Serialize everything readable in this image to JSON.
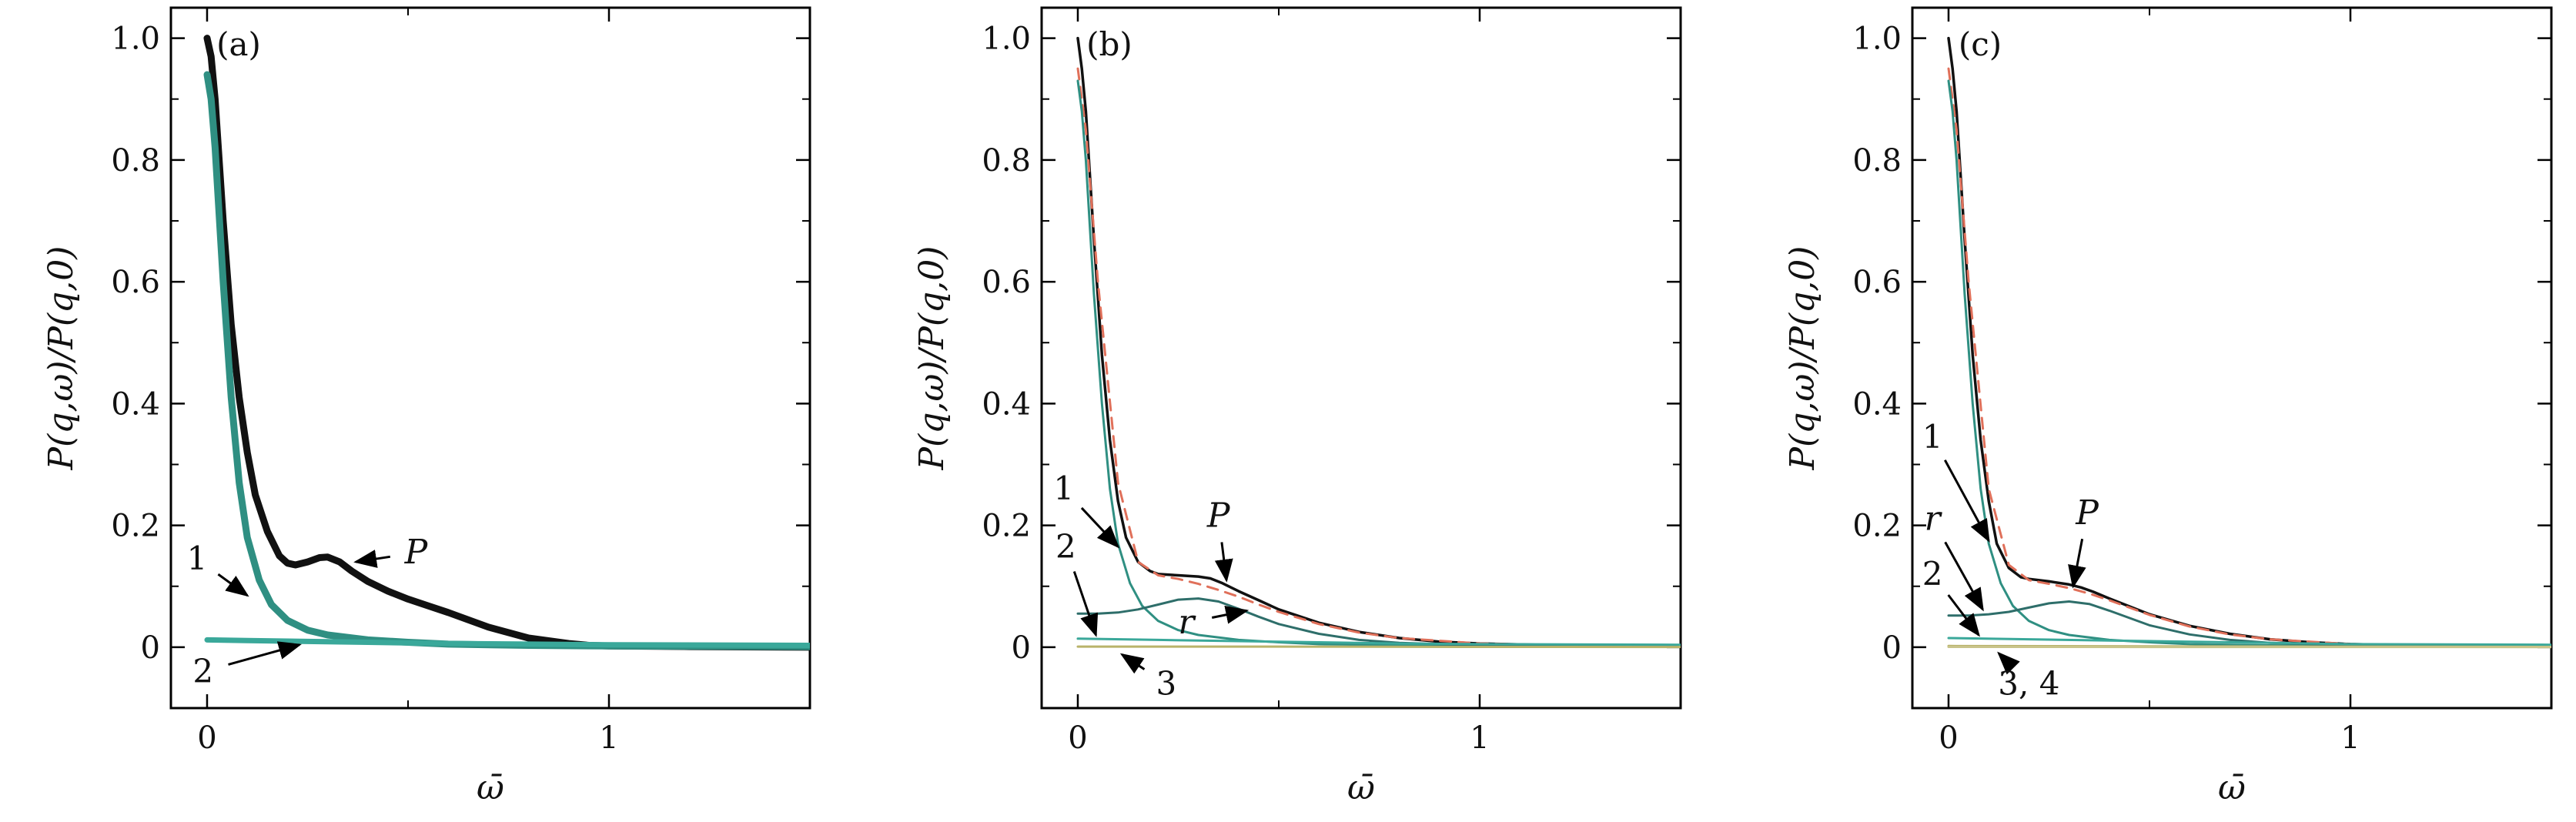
{
  "figure": {
    "colors": {
      "P": "#111111",
      "c1": "#2f8f82",
      "c2": "#3aa89a",
      "r": "#2e6e6a",
      "c3": "#b9b36a",
      "c4": "#c9c48a",
      "fit": "#e0705a"
    }
  },
  "chart_data": [
    {
      "type": "line",
      "panel": "(a)",
      "xlabel": "ω̄",
      "ylabel": "P(q,ω)/P(q,0)",
      "xlim": [
        -0.09,
        1.5
      ],
      "ylim": [
        -0.1,
        1.05
      ],
      "xticks": [
        0,
        1
      ],
      "xtick_labels": [
        "0",
        "1"
      ],
      "yticks": [
        0,
        0.2,
        0.4,
        0.6,
        0.8,
        1.0
      ],
      "ytick_labels": [
        "0",
        "0.2",
        "0.4",
        "0.6",
        "0.8",
        "1.0"
      ],
      "series": [
        {
          "key": "P",
          "color": "#111111",
          "width": 9,
          "dash": "",
          "x": [
            0,
            0.01,
            0.02,
            0.04,
            0.06,
            0.08,
            0.1,
            0.12,
            0.15,
            0.18,
            0.2,
            0.22,
            0.25,
            0.28,
            0.3,
            0.33,
            0.36,
            0.4,
            0.45,
            0.5,
            0.55,
            0.6,
            0.7,
            0.8,
            0.9,
            0.95,
            1.0,
            1.2,
            1.5
          ],
          "y": [
            1.0,
            0.97,
            0.9,
            0.7,
            0.53,
            0.41,
            0.32,
            0.25,
            0.19,
            0.15,
            0.138,
            0.135,
            0.14,
            0.147,
            0.148,
            0.14,
            0.125,
            0.108,
            0.092,
            0.079,
            0.068,
            0.057,
            0.033,
            0.015,
            0.006,
            0.003,
            0.002,
            0.001,
            0.0
          ]
        },
        {
          "key": "c1",
          "color": "#2f8f82",
          "width": 9,
          "dash": "",
          "x": [
            0,
            0.01,
            0.02,
            0.04,
            0.06,
            0.08,
            0.1,
            0.13,
            0.16,
            0.2,
            0.25,
            0.3,
            0.4,
            0.5,
            0.6,
            0.8,
            1.0,
            1.5
          ],
          "y": [
            0.94,
            0.9,
            0.82,
            0.6,
            0.41,
            0.27,
            0.18,
            0.11,
            0.07,
            0.044,
            0.028,
            0.02,
            0.012,
            0.008,
            0.005,
            0.003,
            0.002,
            0.001
          ]
        },
        {
          "key": "c2",
          "color": "#3aa89a",
          "width": 7,
          "dash": "",
          "x": [
            0,
            0.1,
            0.2,
            0.3,
            0.4,
            0.6,
            0.8,
            1.0,
            1.5
          ],
          "y": [
            0.012,
            0.011,
            0.01,
            0.009,
            0.008,
            0.006,
            0.005,
            0.004,
            0.003
          ]
        }
      ],
      "annotations": [
        {
          "text": "P",
          "style": "italic",
          "tx": 0.52,
          "ty": 0.155,
          "ax": 0.37,
          "ay": 0.14
        },
        {
          "text": "1",
          "style": "normal",
          "tx": -0.025,
          "ty": 0.145,
          "ax": 0.1,
          "ay": 0.085
        },
        {
          "text": "2",
          "style": "normal",
          "tx": -0.01,
          "ty": -0.04,
          "ax": 0.23,
          "ay": 0.004
        }
      ]
    },
    {
      "type": "line",
      "panel": "(b)",
      "xlabel": "ω̄",
      "ylabel": "P(q,ω)/P(q,0)",
      "xlim": [
        -0.09,
        1.5
      ],
      "ylim": [
        -0.1,
        1.05
      ],
      "xticks": [
        0,
        1
      ],
      "xtick_labels": [
        "0",
        "1"
      ],
      "yticks": [
        0,
        0.2,
        0.4,
        0.6,
        0.8,
        1.0
      ],
      "ytick_labels": [
        "0",
        "0.2",
        "0.4",
        "0.6",
        "0.8",
        "1.0"
      ],
      "series": [
        {
          "key": "P",
          "color": "#111111",
          "width": 3.5,
          "dash": "",
          "x": [
            0,
            0.01,
            0.02,
            0.04,
            0.06,
            0.08,
            0.1,
            0.12,
            0.15,
            0.18,
            0.2,
            0.25,
            0.3,
            0.33,
            0.36,
            0.4,
            0.45,
            0.5,
            0.6,
            0.7,
            0.8,
            0.9,
            1.0,
            1.2,
            1.5
          ],
          "y": [
            1.0,
            0.95,
            0.88,
            0.67,
            0.48,
            0.34,
            0.24,
            0.18,
            0.14,
            0.125,
            0.12,
            0.118,
            0.116,
            0.113,
            0.105,
            0.092,
            0.077,
            0.062,
            0.04,
            0.025,
            0.015,
            0.009,
            0.006,
            0.003,
            0.001
          ]
        },
        {
          "key": "fit",
          "color": "#e0705a",
          "width": 3,
          "dash": "14 10",
          "x": [
            0,
            0.02,
            0.05,
            0.1,
            0.15,
            0.2,
            0.25,
            0.3,
            0.35,
            0.4,
            0.45,
            0.5,
            0.6,
            0.7,
            0.8,
            1.0,
            1.2,
            1.5
          ],
          "y": [
            0.95,
            0.85,
            0.6,
            0.27,
            0.14,
            0.118,
            0.112,
            0.104,
            0.094,
            0.083,
            0.07,
            0.058,
            0.038,
            0.024,
            0.015,
            0.006,
            0.003,
            0.001
          ]
        },
        {
          "key": "c1",
          "color": "#2f8f82",
          "width": 3,
          "dash": "",
          "x": [
            0,
            0.01,
            0.02,
            0.04,
            0.06,
            0.08,
            0.1,
            0.13,
            0.16,
            0.2,
            0.25,
            0.3,
            0.4,
            0.5,
            0.6,
            0.8,
            1.0,
            1.5
          ],
          "y": [
            0.93,
            0.88,
            0.8,
            0.58,
            0.4,
            0.26,
            0.17,
            0.105,
            0.068,
            0.043,
            0.028,
            0.02,
            0.012,
            0.008,
            0.005,
            0.003,
            0.002,
            0.001
          ]
        },
        {
          "key": "r",
          "color": "#2e6e6a",
          "width": 3,
          "dash": "",
          "x": [
            0,
            0.05,
            0.1,
            0.15,
            0.2,
            0.25,
            0.3,
            0.35,
            0.4,
            0.45,
            0.5,
            0.6,
            0.7,
            0.8,
            1.0,
            1.5
          ],
          "y": [
            0.055,
            0.055,
            0.057,
            0.062,
            0.07,
            0.078,
            0.08,
            0.075,
            0.063,
            0.05,
            0.038,
            0.022,
            0.012,
            0.007,
            0.003,
            0.001
          ]
        },
        {
          "key": "c2",
          "color": "#3aa89a",
          "width": 3,
          "dash": "",
          "x": [
            0,
            0.2,
            0.4,
            0.6,
            0.8,
            1.0,
            1.5
          ],
          "y": [
            0.014,
            0.012,
            0.01,
            0.008,
            0.006,
            0.005,
            0.004
          ]
        },
        {
          "key": "c3",
          "color": "#b9b36a",
          "width": 3,
          "dash": "",
          "x": [
            0,
            0.5,
            1.0,
            1.5
          ],
          "y": [
            0.001,
            0.001,
            0.0005,
            0.0003
          ]
        }
      ],
      "annotations": [
        {
          "text": "P",
          "style": "italic",
          "tx": 0.35,
          "ty": 0.215,
          "ax": 0.37,
          "ay": 0.11
        },
        {
          "text": "1",
          "style": "normal",
          "tx": -0.035,
          "ty": 0.26,
          "ax": 0.1,
          "ay": 0.165
        },
        {
          "text": "2",
          "style": "normal",
          "tx": -0.03,
          "ty": 0.165,
          "ax": 0.045,
          "ay": 0.02
        },
        {
          "text": "r",
          "style": "italic",
          "tx": 0.27,
          "ty": 0.04,
          "ax": 0.42,
          "ay": 0.06
        },
        {
          "text": "3",
          "style": "normal",
          "tx": 0.22,
          "ty": -0.06,
          "ax": 0.11,
          "ay": -0.012
        }
      ]
    },
    {
      "type": "line",
      "panel": "(c)",
      "xlabel": "ω̄",
      "ylabel": "P(q,ω)/P(q,0)",
      "xlim": [
        -0.09,
        1.5
      ],
      "ylim": [
        -0.1,
        1.05
      ],
      "xticks": [
        0,
        1
      ],
      "xtick_labels": [
        "0",
        "1"
      ],
      "yticks": [
        0,
        0.2,
        0.4,
        0.6,
        0.8,
        1.0
      ],
      "ytick_labels": [
        "0",
        "0.2",
        "0.4",
        "0.6",
        "0.8",
        "1.0"
      ],
      "series": [
        {
          "key": "P",
          "color": "#111111",
          "width": 3.5,
          "dash": "",
          "x": [
            0,
            0.01,
            0.02,
            0.04,
            0.06,
            0.08,
            0.1,
            0.12,
            0.15,
            0.18,
            0.2,
            0.25,
            0.3,
            0.33,
            0.36,
            0.4,
            0.45,
            0.5,
            0.6,
            0.7,
            0.8,
            0.9,
            1.0,
            1.2,
            1.5
          ],
          "y": [
            1.0,
            0.95,
            0.88,
            0.67,
            0.48,
            0.34,
            0.24,
            0.17,
            0.13,
            0.115,
            0.112,
            0.108,
            0.103,
            0.098,
            0.091,
            0.08,
            0.067,
            0.054,
            0.035,
            0.022,
            0.013,
            0.008,
            0.005,
            0.002,
            0.001
          ]
        },
        {
          "key": "fit",
          "color": "#e0705a",
          "width": 3,
          "dash": "14 10",
          "x": [
            0,
            0.02,
            0.05,
            0.1,
            0.15,
            0.2,
            0.25,
            0.3,
            0.35,
            0.4,
            0.45,
            0.5,
            0.6,
            0.7,
            0.8,
            1.0,
            1.2,
            1.5
          ],
          "y": [
            0.95,
            0.85,
            0.6,
            0.26,
            0.135,
            0.11,
            0.104,
            0.097,
            0.088,
            0.077,
            0.065,
            0.053,
            0.034,
            0.021,
            0.013,
            0.005,
            0.002,
            0.001
          ]
        },
        {
          "key": "c1",
          "color": "#2f8f82",
          "width": 3,
          "dash": "",
          "x": [
            0,
            0.01,
            0.02,
            0.04,
            0.06,
            0.08,
            0.1,
            0.13,
            0.16,
            0.2,
            0.25,
            0.3,
            0.4,
            0.5,
            0.6,
            0.8,
            1.0,
            1.5
          ],
          "y": [
            0.93,
            0.88,
            0.8,
            0.58,
            0.4,
            0.26,
            0.17,
            0.105,
            0.068,
            0.043,
            0.028,
            0.02,
            0.012,
            0.008,
            0.005,
            0.003,
            0.002,
            0.001
          ]
        },
        {
          "key": "r",
          "color": "#2e6e6a",
          "width": 3,
          "dash": "",
          "x": [
            0,
            0.05,
            0.1,
            0.15,
            0.2,
            0.25,
            0.3,
            0.35,
            0.4,
            0.45,
            0.5,
            0.6,
            0.7,
            0.8,
            1.0,
            1.5
          ],
          "y": [
            0.052,
            0.052,
            0.054,
            0.058,
            0.065,
            0.072,
            0.075,
            0.071,
            0.06,
            0.048,
            0.036,
            0.021,
            0.012,
            0.007,
            0.003,
            0.001
          ]
        },
        {
          "key": "c2",
          "color": "#3aa89a",
          "width": 3,
          "dash": "",
          "x": [
            0,
            0.2,
            0.4,
            0.6,
            0.8,
            1.0,
            1.5
          ],
          "y": [
            0.015,
            0.013,
            0.011,
            0.009,
            0.007,
            0.005,
            0.004
          ]
        },
        {
          "key": "c3",
          "color": "#b9b36a",
          "width": 3,
          "dash": "",
          "x": [
            0,
            0.5,
            1.0,
            1.5
          ],
          "y": [
            0.002,
            0.0015,
            0.001,
            0.0005
          ]
        },
        {
          "key": "c4",
          "color": "#c9c48a",
          "width": 3,
          "dash": "",
          "x": [
            0,
            0.5,
            1.0,
            1.5
          ],
          "y": [
            0.0005,
            0.0004,
            0.0003,
            0.0002
          ]
        }
      ],
      "annotations": [
        {
          "text": "P",
          "style": "italic",
          "tx": 0.345,
          "ty": 0.22,
          "ax": 0.31,
          "ay": 0.1
        },
        {
          "text": "1",
          "style": "normal",
          "tx": -0.04,
          "ty": 0.345,
          "ax": 0.1,
          "ay": 0.175
        },
        {
          "text": "r",
          "style": "italic",
          "tx": -0.04,
          "ty": 0.21,
          "ax": 0.085,
          "ay": 0.062
        },
        {
          "text": "2",
          "style": "normal",
          "tx": -0.04,
          "ty": 0.12,
          "ax": 0.075,
          "ay": 0.02
        },
        {
          "text": "3, 4",
          "style": "normal",
          "tx": 0.2,
          "ty": -0.06,
          "ax": 0.125,
          "ay": -0.01
        }
      ]
    }
  ]
}
